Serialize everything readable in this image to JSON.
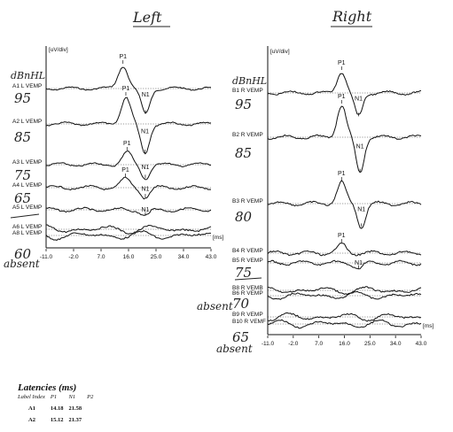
{
  "header": {
    "left": "Left",
    "right": "Right"
  },
  "unit_label": "[uV/div]",
  "ms_label": "[ms]",
  "x_ticks": [
    "-11.0",
    "-2.0",
    "7.0",
    "16.0",
    "25.0",
    "34.0",
    "43.0"
  ],
  "left_panel": {
    "dbnhl_label": "dBnHL",
    "handwritten": [
      "95",
      "85",
      "75",
      "65",
      "60",
      "absent"
    ],
    "traces": [
      {
        "label": "A1 L VEMP",
        "p1": "P1",
        "n1": "N1"
      },
      {
        "label": "A2 L VEMP",
        "p1": "P1",
        "n1": "N1"
      },
      {
        "label": "A3 L VEMP",
        "p1": "P1",
        "n1": "N1"
      },
      {
        "label": "A4 L VEMP",
        "p1": "P1",
        "n1": "N1"
      },
      {
        "label": "A5 L VEMP",
        "p1": "",
        "n1": "N1"
      },
      {
        "label": "A6 L VEMP",
        "p1": "",
        "n1": ""
      },
      {
        "label": "A8 L VEMP",
        "p1": "",
        "n1": ""
      }
    ]
  },
  "right_panel": {
    "dbnhl_label": "dBnHL",
    "handwritten": [
      "95",
      "85",
      "80",
      "75",
      "absent",
      "70",
      "absent",
      "65"
    ],
    "traces": [
      {
        "label": "B1 R VEMP",
        "p1": "P1",
        "n1": "N1"
      },
      {
        "label": "B2 R VEMP",
        "p1": "P1",
        "n1": "N1"
      },
      {
        "label": "B3 R VEMP",
        "p1": "P1",
        "n1": "N1"
      },
      {
        "label": "B4 R VEMP",
        "p1": "P1",
        "n1": ""
      },
      {
        "label": "B5 R VEMP",
        "p1": "",
        "n1": "N1"
      },
      {
        "label": "B8 R VEMB",
        "p1": "",
        "n1": ""
      },
      {
        "label": "B6 R VEMP",
        "p1": "",
        "n1": ""
      },
      {
        "label": "B9 R VEMP",
        "p1": "",
        "n1": ""
      },
      {
        "label": "B10 R VEMF",
        "p1": "",
        "n1": ""
      }
    ]
  },
  "latencies": {
    "title": "Latencies (ms)",
    "columns": [
      "Label Index",
      "P1",
      "N1",
      "P2"
    ],
    "rows": [
      [
        "A1",
        "14.18",
        "21.58",
        ""
      ],
      [
        "A2",
        "15.12",
        "21.37",
        ""
      ]
    ]
  },
  "chart_data": {
    "type": "line",
    "xlabel": "[ms]",
    "ylabel": "[uV/div]",
    "xlim": [
      -11.0,
      43.0
    ],
    "x_ticks": [
      -11.0,
      -2.0,
      7.0,
      16.0,
      25.0,
      34.0,
      43.0
    ],
    "panels": [
      {
        "title": "Left",
        "series": [
          {
            "name": "A1 L VEMP",
            "p1_ms": 14.18,
            "n1_ms": 21.58
          },
          {
            "name": "A2 L VEMP",
            "p1_ms": 15.12,
            "n1_ms": 21.37
          },
          {
            "name": "A3 L VEMP",
            "p1_ms": 15.5,
            "n1_ms": 21.5
          },
          {
            "name": "A4 L VEMP",
            "p1_ms": 15.0,
            "n1_ms": 21.5
          },
          {
            "name": "A5 L VEMP",
            "p1_ms": null,
            "n1_ms": 21.5
          },
          {
            "name": "A6 L VEMP",
            "p1_ms": null,
            "n1_ms": null
          },
          {
            "name": "A8 L VEMP",
            "p1_ms": null,
            "n1_ms": null
          }
        ]
      },
      {
        "title": "Right",
        "series": [
          {
            "name": "B1 R VEMP",
            "p1_ms": 15.0,
            "n1_ms": 21.0
          },
          {
            "name": "B2 R VEMP",
            "p1_ms": 15.0,
            "n1_ms": 21.5
          },
          {
            "name": "B3 R VEMP",
            "p1_ms": 15.0,
            "n1_ms": 22.0
          },
          {
            "name": "B4 R VEMP",
            "p1_ms": 15.0,
            "n1_ms": null
          },
          {
            "name": "B5 R VEMP",
            "p1_ms": null,
            "n1_ms": 21.0
          },
          {
            "name": "B8 R VEMB",
            "p1_ms": null,
            "n1_ms": null
          },
          {
            "name": "B6 R VEMP",
            "p1_ms": null,
            "n1_ms": null
          },
          {
            "name": "B9 R VEMP",
            "p1_ms": null,
            "n1_ms": null
          },
          {
            "name": "B10 R VEMF",
            "p1_ms": null,
            "n1_ms": null
          }
        ]
      }
    ]
  }
}
